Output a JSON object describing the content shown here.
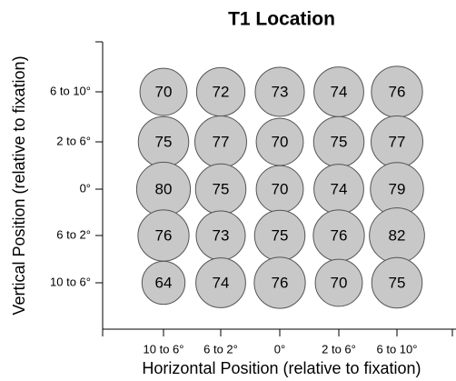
{
  "chart_data": {
    "type": "bubble",
    "title": "T1 Location",
    "x_label": "Horizontal Position (relative to fixation)",
    "y_label": "Vertical Position (relative to fixation)",
    "x_categories": [
      "10 to 6°",
      "6 to 2°",
      "0°",
      "2 to 6°",
      "6 to 10°"
    ],
    "y_categories": [
      "6 to 10°",
      "2 to 6°",
      "0°",
      "6 to 2°",
      "10 to 6°"
    ],
    "values": [
      [
        70,
        72,
        73,
        74,
        76
      ],
      [
        75,
        77,
        70,
        75,
        77
      ],
      [
        80,
        75,
        70,
        74,
        79
      ],
      [
        76,
        73,
        75,
        76,
        82
      ],
      [
        64,
        74,
        76,
        70,
        75
      ]
    ],
    "color": "#c8c8c8"
  }
}
